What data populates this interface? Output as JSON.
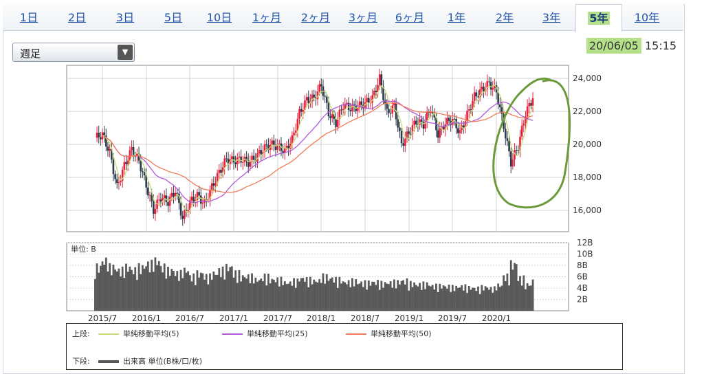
{
  "tabs": [
    {
      "label": "1日"
    },
    {
      "label": "2日"
    },
    {
      "label": "3日"
    },
    {
      "label": "5日"
    },
    {
      "label": "10日"
    },
    {
      "label": "1ヶ月"
    },
    {
      "label": "2ヶ月"
    },
    {
      "label": "3ヶ月"
    },
    {
      "label": "6ヶ月"
    },
    {
      "label": "1年"
    },
    {
      "label": "2年"
    },
    {
      "label": "3年"
    },
    {
      "label": "5年"
    },
    {
      "label": "10年"
    }
  ],
  "active_tab": "5年",
  "period_select": {
    "value": "週足"
  },
  "timestamp": {
    "date": "20/06/05",
    "time": "15:15"
  },
  "legend": {
    "upper_label": "上段:",
    "lower_label": "下段:",
    "items": [
      {
        "label": "単純移動平均(5)",
        "color": "#c8dc7a"
      },
      {
        "label": "単純移動平均(25)",
        "color": "#b05ad8"
      },
      {
        "label": "単純移動平均(50)",
        "color": "#f07a55"
      }
    ],
    "volume_label": "出来高 単位(B株/口/枚)",
    "volume_color": "#555555"
  },
  "colors": {
    "up": "#e8203a",
    "down": "#2a3a4a",
    "annotation": "#6a9a3a",
    "volume": "#595959",
    "tab_link": "#2255aa",
    "highlight": "#b5e08a"
  },
  "chart_data": [
    {
      "type": "candlestick",
      "x_ticks": [
        "2015/7",
        "2016/1",
        "2016/7",
        "2017/1",
        "2017/7",
        "2018/1",
        "2018/7",
        "2019/1",
        "2019/7",
        "2020/1"
      ],
      "y_ticks": [
        "24,000",
        "22,000",
        "20,000",
        "18,000",
        "16,000"
      ],
      "ylim": [
        14700,
        24800
      ],
      "series_close": [
        {
          "x": "2015-06",
          "y": 20400
        },
        {
          "x": "2015-07",
          "y": 20600
        },
        {
          "x": "2015-08",
          "y": 19500
        },
        {
          "x": "2015-09",
          "y": 17400
        },
        {
          "x": "2015-10",
          "y": 18700
        },
        {
          "x": "2015-11",
          "y": 19700
        },
        {
          "x": "2015-12",
          "y": 19000
        },
        {
          "x": "2016-01",
          "y": 17500
        },
        {
          "x": "2016-02",
          "y": 16000
        },
        {
          "x": "2016-03",
          "y": 16800
        },
        {
          "x": "2016-04",
          "y": 16500
        },
        {
          "x": "2016-05",
          "y": 17200
        },
        {
          "x": "2016-06",
          "y": 15500
        },
        {
          "x": "2016-07",
          "y": 16500
        },
        {
          "x": "2016-08",
          "y": 16900
        },
        {
          "x": "2016-09",
          "y": 16400
        },
        {
          "x": "2016-10",
          "y": 17400
        },
        {
          "x": "2016-11",
          "y": 18300
        },
        {
          "x": "2016-12",
          "y": 19100
        },
        {
          "x": "2017-01",
          "y": 19000
        },
        {
          "x": "2017-02",
          "y": 19100
        },
        {
          "x": "2017-03",
          "y": 18900
        },
        {
          "x": "2017-04",
          "y": 19200
        },
        {
          "x": "2017-05",
          "y": 19700
        },
        {
          "x": "2017-06",
          "y": 20000
        },
        {
          "x": "2017-07",
          "y": 19900
        },
        {
          "x": "2017-08",
          "y": 19600
        },
        {
          "x": "2017-09",
          "y": 20300
        },
        {
          "x": "2017-10",
          "y": 21900
        },
        {
          "x": "2017-11",
          "y": 22700
        },
        {
          "x": "2017-12",
          "y": 22800
        },
        {
          "x": "2018-01",
          "y": 23600
        },
        {
          "x": "2018-02",
          "y": 21900
        },
        {
          "x": "2018-03",
          "y": 21300
        },
        {
          "x": "2018-04",
          "y": 22400
        },
        {
          "x": "2018-05",
          "y": 22200
        },
        {
          "x": "2018-06",
          "y": 22300
        },
        {
          "x": "2018-07",
          "y": 22500
        },
        {
          "x": "2018-08",
          "y": 22800
        },
        {
          "x": "2018-09",
          "y": 24000
        },
        {
          "x": "2018-10",
          "y": 21900
        },
        {
          "x": "2018-11",
          "y": 22300
        },
        {
          "x": "2018-12",
          "y": 20000
        },
        {
          "x": "2019-01",
          "y": 20700
        },
        {
          "x": "2019-02",
          "y": 21400
        },
        {
          "x": "2019-03",
          "y": 21200
        },
        {
          "x": "2019-04",
          "y": 22200
        },
        {
          "x": "2019-05",
          "y": 20600
        },
        {
          "x": "2019-06",
          "y": 21300
        },
        {
          "x": "2019-07",
          "y": 21500
        },
        {
          "x": "2019-08",
          "y": 20700
        },
        {
          "x": "2019-09",
          "y": 21800
        },
        {
          "x": "2019-10",
          "y": 22900
        },
        {
          "x": "2019-11",
          "y": 23300
        },
        {
          "x": "2019-12",
          "y": 23700
        },
        {
          "x": "2020-01",
          "y": 23200
        },
        {
          "x": "2020-02",
          "y": 21100
        },
        {
          "x": "2020-03",
          "y": 18900
        },
        {
          "x": "2020-04",
          "y": 19900
        },
        {
          "x": "2020-05",
          "y": 21900
        },
        {
          "x": "2020-06",
          "y": 22800
        }
      ],
      "ma_series": [
        {
          "name": "単純移動平均(5)",
          "ref": "5"
        },
        {
          "name": "単純移動平均(25)",
          "ref": "25"
        },
        {
          "name": "単純移動平均(50)",
          "ref": "50"
        }
      ]
    },
    {
      "type": "bar",
      "unit_label": "単位: B",
      "y_ticks": [
        "12B",
        "10B",
        "8B",
        "6B",
        "4B",
        "2B"
      ],
      "ylim": [
        0,
        12
      ],
      "values": [
        7,
        8,
        7,
        6.5,
        7,
        6.5,
        7,
        7.5,
        8,
        7,
        6.5,
        6,
        6.5,
        5.5,
        6,
        5.5,
        6,
        6.5,
        7,
        6,
        5.5,
        5.5,
        5,
        5.5,
        5,
        5,
        4.5,
        4.8,
        5.2,
        5,
        4.8,
        5.5,
        5.2,
        5,
        4.6,
        4.8,
        4.5,
        4.5,
        4.6,
        4.4,
        4.5,
        4.6,
        4.8,
        4.4,
        4.2,
        4.3,
        4.0,
        4.0,
        3.9,
        3.8,
        3.9,
        3.7,
        3.6,
        3.8,
        3.6,
        4.1,
        5.5,
        7.5,
        5.2,
        4.2,
        4.8
      ]
    }
  ]
}
